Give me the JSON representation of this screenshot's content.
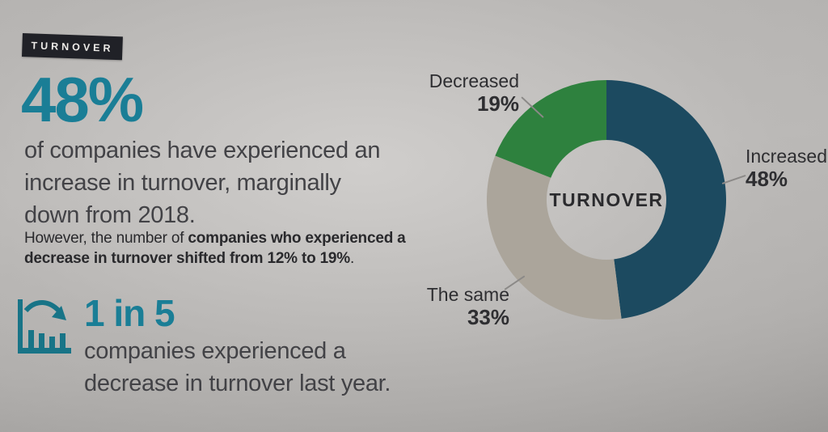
{
  "page": {
    "section_tag": "TURNOVER",
    "headline_stat": "48%",
    "headline_lines": [
      "of companies have experienced an",
      "increase in turnover, marginally",
      "down from 2018."
    ],
    "note": {
      "line1_regular": "However, the number of ",
      "line1_bold": "companies who experienced a",
      "line2_bold": "decrease in turnover shifted from 12% to 19%",
      "line2_suffix": "."
    },
    "secondary_stat": "1 in 5",
    "secondary_lines": [
      "companies experienced a",
      "decrease in turnover last year."
    ]
  },
  "chart_data": {
    "type": "pie",
    "subtype": "donut",
    "center_label": "TURNOVER",
    "categories": [
      "Increased",
      "The same",
      "Decreased"
    ],
    "values": [
      48,
      33,
      19
    ],
    "unit": "%",
    "colors": [
      "#1c4a60",
      "#aba59b",
      "#2e813e"
    ],
    "start_angle_deg": 0,
    "direction": "clockwise",
    "inner_radius_ratio": 0.5,
    "legend_position": "outside-callouts",
    "callouts": [
      {
        "name": "Increased",
        "value": "48%",
        "position": "right"
      },
      {
        "name": "The same",
        "value": "33%",
        "position": "bottom-left"
      },
      {
        "name": "Decreased",
        "value": "19%",
        "position": "top-left"
      }
    ]
  },
  "colors": {
    "accent_teal": "#1a7e96",
    "icon_teal": "#187487",
    "slice_increased": "#1c4a60",
    "slice_same": "#aba59b",
    "slice_decreased": "#2e813e",
    "tag_background": "#202127",
    "tag_text": "#eceae7",
    "body_text": "#424246",
    "note_text": "#29292c",
    "chart_label_text": "#2e2e31",
    "page_background": "#b5b3b1"
  }
}
